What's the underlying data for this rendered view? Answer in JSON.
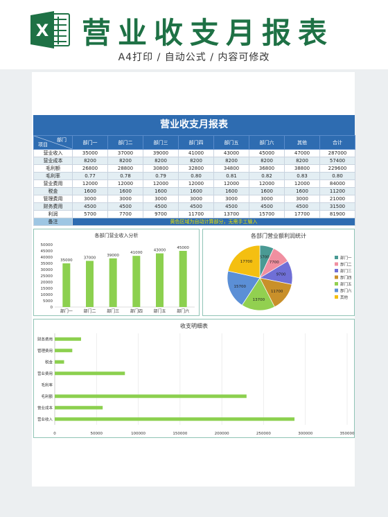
{
  "header": {
    "title": "营业收支月报表",
    "subtitle": "A4打印 / 自动公式 / 内容可修改",
    "logo_letter": "X",
    "brand_color": "#1e7145"
  },
  "table": {
    "title": "营业收支月报表",
    "corner_top": "部门",
    "corner_bottom": "项目",
    "columns": [
      "部门一",
      "部门二",
      "部门三",
      "部门四",
      "部门五",
      "部门六",
      "其他",
      "合计"
    ],
    "rows": [
      {
        "label": "营业收入",
        "cells": [
          "35000",
          "37000",
          "39000",
          "41000",
          "43000",
          "45000",
          "47000",
          "287000"
        ]
      },
      {
        "label": "营业成本",
        "cells": [
          "8200",
          "8200",
          "8200",
          "8200",
          "8200",
          "8200",
          "8200",
          "57400"
        ]
      },
      {
        "label": "毛利额",
        "cells": [
          "26800",
          "28800",
          "30800",
          "32800",
          "34800",
          "36800",
          "38800",
          "229600"
        ]
      },
      {
        "label": "毛利率",
        "cells": [
          "0.77",
          "0.78",
          "0.79",
          "0.80",
          "0.81",
          "0.82",
          "0.83",
          "0.80"
        ]
      },
      {
        "label": "营业费用",
        "cells": [
          "12000",
          "12000",
          "12000",
          "12000",
          "12000",
          "12000",
          "12000",
          "84000"
        ]
      },
      {
        "label": "税金",
        "cells": [
          "1600",
          "1600",
          "1600",
          "1600",
          "1600",
          "1600",
          "1600",
          "11200"
        ]
      },
      {
        "label": "管理费用",
        "cells": [
          "3000",
          "3000",
          "3000",
          "3000",
          "3000",
          "3000",
          "3000",
          "21000"
        ]
      },
      {
        "label": "财务费用",
        "cells": [
          "4500",
          "4500",
          "4500",
          "4500",
          "4500",
          "4500",
          "4500",
          "31500"
        ]
      },
      {
        "label": "利润",
        "cells": [
          "5700",
          "7700",
          "9700",
          "11700",
          "13700",
          "15700",
          "17700",
          "81900"
        ]
      }
    ],
    "note_label": "备注",
    "note_text": "黄色区域为自动计算部分，无需手工输入",
    "header_color": "#2e6cb1"
  },
  "chart_data": [
    {
      "type": "bar",
      "title": "各部门营业收入分析",
      "categories": [
        "部门一",
        "部门二",
        "部门三",
        "部门四",
        "部门五",
        "部门六"
      ],
      "values": [
        35000,
        37000,
        39000,
        41000,
        43000,
        45000
      ],
      "ylim": [
        0,
        50000
      ],
      "yticks": [
        "0",
        "5000",
        "10000",
        "15000",
        "20000",
        "25000",
        "30000",
        "35000",
        "40000",
        "45000",
        "50000"
      ],
      "data_labels": [
        "35000",
        "37000",
        "39000",
        "41000",
        "43000",
        "45000"
      ],
      "color": "#8cd04f"
    },
    {
      "type": "pie",
      "title": "各部门营业额利润统计",
      "labels": [
        "部门一",
        "部门二",
        "部门三",
        "部门四",
        "部门五",
        "部门六",
        "其他"
      ],
      "values": [
        5700,
        7700,
        9700,
        11700,
        13700,
        15700,
        17700
      ],
      "data_labels": [
        "5700",
        "7700",
        "9700",
        "11700",
        "13700",
        "15700",
        "17700"
      ],
      "colors": [
        "#4a9a94",
        "#f08fa0",
        "#6f6fd6",
        "#c9902a",
        "#92d050",
        "#5b8fd6",
        "#f4bf11"
      ],
      "legend_position": "right"
    },
    {
      "type": "bar",
      "orientation": "horizontal",
      "title": "收支明细表",
      "categories": [
        "营业收入",
        "营业成本",
        "毛利额",
        "毛利率",
        "营业费用",
        "税金",
        "管理费用",
        "财务费用"
      ],
      "values": [
        287000,
        57400,
        229600,
        0.8,
        84000,
        11200,
        21000,
        31500
      ],
      "xlim": [
        0,
        350000
      ],
      "xticks": [
        "0",
        "50000",
        "100000",
        "150000",
        "200000",
        "250000",
        "300000",
        "350000"
      ],
      "color": "#8cd04f"
    }
  ]
}
